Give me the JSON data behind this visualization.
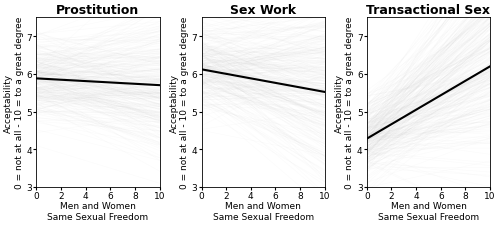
{
  "titles": [
    "Prostitution",
    "Sex Work",
    "Transactional Sex"
  ],
  "xlabel": "Men and Women\nSame Sexual Freedom",
  "ylabel": "Acceptability\n0 = not at all - 10 = to a great degree",
  "xlim": [
    0,
    10
  ],
  "ylim": [
    3,
    7.5
  ],
  "yticks": [
    3,
    4,
    5,
    6,
    7
  ],
  "xticks": [
    0,
    2,
    4,
    6,
    8,
    10
  ],
  "lines": [
    {
      "x0": 0,
      "y0": 5.88,
      "x1": 10,
      "y1": 5.7
    },
    {
      "x0": 0,
      "y0": 6.12,
      "x1": 10,
      "y1": 5.52
    },
    {
      "x0": 0,
      "y0": 4.28,
      "x1": 10,
      "y1": 6.2
    }
  ],
  "sim_params": [
    {
      "noise_int": 0.55,
      "noise_slope": 0.08
    },
    {
      "noise_int": 0.6,
      "noise_slope": 0.1
    },
    {
      "noise_int": 0.55,
      "noise_slope": 0.12
    }
  ],
  "n_sim": 300,
  "scatter_alpha": 0.06,
  "scatter_color": "#bbbbbb",
  "line_color": "black",
  "bg_color": "white",
  "title_fontsize": 9,
  "axis_fontsize": 6.5,
  "tick_fontsize": 6.5
}
